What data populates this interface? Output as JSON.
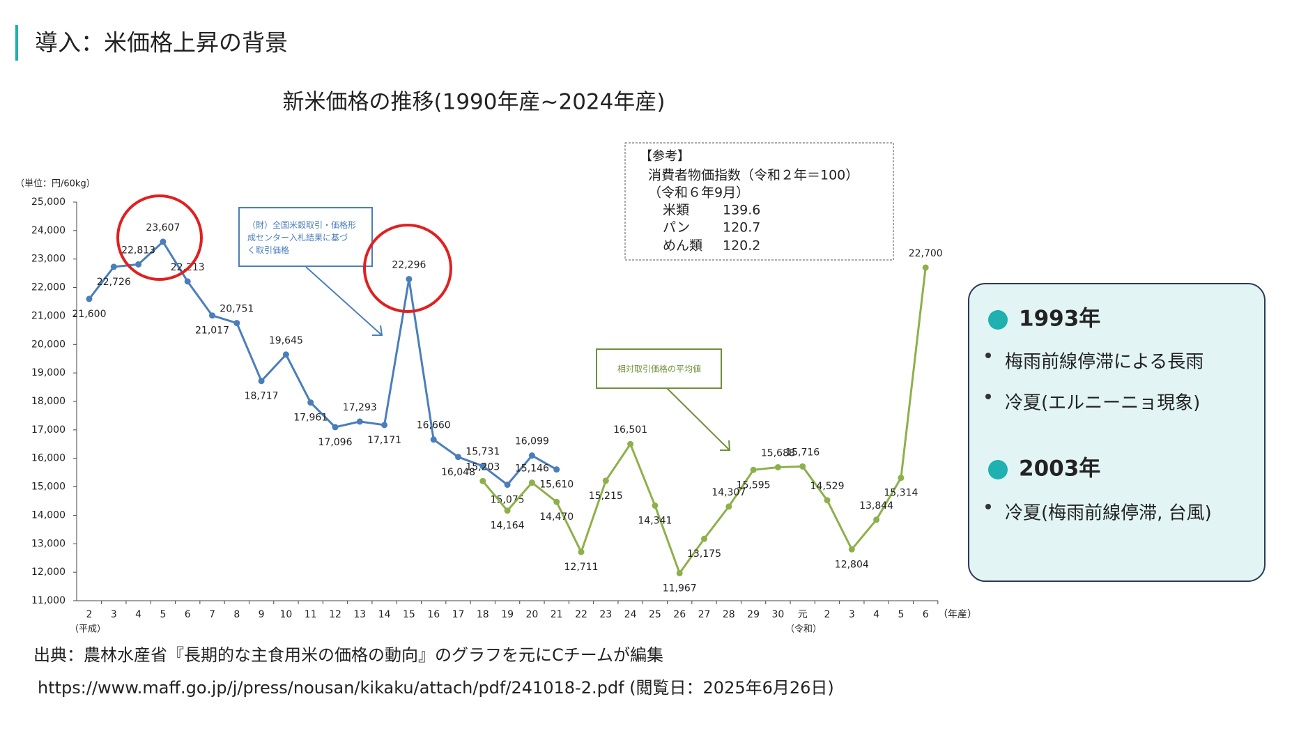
{
  "header": {
    "title": "導入：米価格上昇の背景"
  },
  "chart_data": {
    "type": "line",
    "title": "新米価格の推移(1990年産~2024年産)",
    "unit_label": "（単位：円/60kg）",
    "x_unit": "（年産）",
    "era_labels": [
      "（平成）",
      "（令和）"
    ],
    "categories": [
      "2",
      "3",
      "4",
      "5",
      "6",
      "7",
      "8",
      "9",
      "10",
      "11",
      "12",
      "13",
      "14",
      "15",
      "16",
      "17",
      "18",
      "19",
      "20",
      "21",
      "22",
      "23",
      "24",
      "25",
      "26",
      "27",
      "28",
      "29",
      "30",
      "元",
      "2",
      "3",
      "4",
      "5",
      "6"
    ],
    "ylim": [
      11000,
      25000
    ],
    "yticks": [
      {
        "value": 11000,
        "label": "11,000"
      },
      {
        "value": 12000,
        "label": "12,000"
      },
      {
        "value": 13000,
        "label": "13,000"
      },
      {
        "value": 14000,
        "label": "14,000"
      },
      {
        "value": 15000,
        "label": "15,000"
      },
      {
        "value": 16000,
        "label": "16,000"
      },
      {
        "value": 17000,
        "label": "17,000"
      },
      {
        "value": 18000,
        "label": "18,000"
      },
      {
        "value": 19000,
        "label": "19,000"
      },
      {
        "value": 20000,
        "label": "20,000"
      },
      {
        "value": 21000,
        "label": "21,000"
      },
      {
        "value": 22000,
        "label": "22,000"
      },
      {
        "value": 23000,
        "label": "23,000"
      },
      {
        "value": 24000,
        "label": "24,000"
      },
      {
        "value": 25000,
        "label": "25,000"
      }
    ],
    "series": [
      {
        "name": "（財）全国米穀取引・価格形成センター入札結果に基づく取引価格",
        "color": "#4a7ebb",
        "values": [
          21600,
          22726,
          22813,
          23607,
          22213,
          21017,
          20751,
          18717,
          19645,
          17961,
          17096,
          17293,
          17171,
          22296,
          16660,
          16048,
          15731,
          15075,
          16099,
          15610,
          null,
          null,
          null,
          null,
          null,
          null,
          null,
          null,
          null,
          null,
          null,
          null,
          null,
          null,
          null
        ],
        "value_labels": [
          "21,600",
          "22,726",
          "22,813",
          "23,607",
          "22,213",
          "21,017",
          "20,751",
          "18,717",
          "19,645",
          "17,961",
          "17,096",
          "17,293",
          "17,171",
          "22,296",
          "16,660",
          "16,048",
          "15,731",
          "15,075",
          "16,099",
          "15,610",
          null,
          null,
          null,
          null,
          null,
          null,
          null,
          null,
          null,
          null,
          null,
          null,
          null,
          null,
          null
        ]
      },
      {
        "name": "相対取引価格の平均値",
        "color": "#8db04a",
        "values": [
          null,
          null,
          null,
          null,
          null,
          null,
          null,
          null,
          null,
          null,
          null,
          null,
          null,
          null,
          null,
          null,
          15203,
          14164,
          15146,
          14470,
          12711,
          15215,
          16501,
          14341,
          11967,
          13175,
          14307,
          15595,
          15688,
          15716,
          14529,
          12804,
          13844,
          15314,
          22700
        ],
        "value_labels": [
          null,
          null,
          null,
          null,
          null,
          null,
          null,
          null,
          null,
          null,
          null,
          null,
          null,
          null,
          null,
          null,
          "15,203",
          "14,164",
          "15,146",
          "14,470",
          "12,711",
          "15,215",
          "16,501",
          "14,341",
          "11,967",
          "13,175",
          "14,307",
          "15,595",
          "15,688",
          "15,716",
          "14,529",
          "12,804",
          "13,844",
          "15,314",
          "22,700"
        ]
      }
    ],
    "reference": {
      "lines": [
        "【参考】",
        "消費者物価指数（令和２年＝100）",
        "（令和６年9月）"
      ],
      "items": [
        {
          "label": "米類",
          "value": "139.6"
        },
        {
          "label": "パン",
          "value": "120.7"
        },
        {
          "label": "めん類",
          "value": "120.2"
        }
      ]
    }
  },
  "source": {
    "line1": "出典：農林水産省『長期的な主食用米の価格の動向』のグラフを元にCチームが編集",
    "line2": "https://www.maff.go.jp/j/press/nousan/kikaku/attach/pdf/241018-2.pdf (閲覧日：2025年6月26日)"
  },
  "panel": {
    "items": [
      {
        "heading": "1993年",
        "points": [
          "梅雨前線停滞による長雨",
          "冷夏(エルニーニョ現象)"
        ]
      },
      {
        "heading": "2003年",
        "points": [
          "冷夏(梅雨前線停滞, 台風)"
        ]
      }
    ]
  }
}
